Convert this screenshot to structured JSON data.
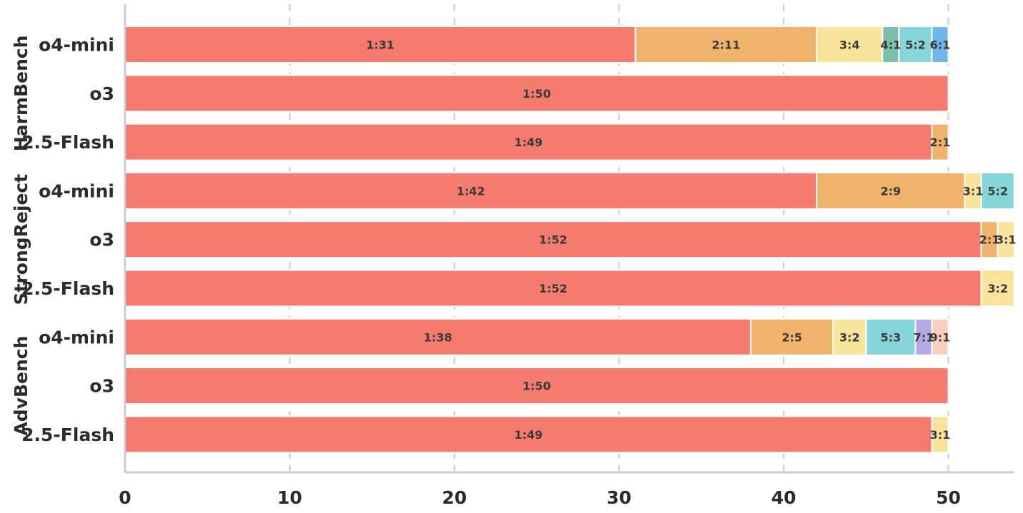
{
  "chart_data": {
    "type": "bar",
    "orientation": "horizontal",
    "stacked": true,
    "xlim": [
      0,
      54
    ],
    "x_ticks": [
      0,
      10,
      20,
      30,
      40,
      50
    ],
    "grid": "vertical-dashed",
    "colors": {
      "1": "#f47b6e",
      "2": "#efb36c",
      "3": "#f8e39a",
      "4": "#7fbfaa",
      "5": "#86d6d9",
      "6": "#6eb6ec",
      "7": "#b6a8e6",
      "9": "#f9d0c0"
    },
    "groups": [
      {
        "name": "HarmBench",
        "rows": [
          {
            "label": "o4-mini",
            "segments": [
              {
                "key": "1",
                "value": 31,
                "label": "1:31"
              },
              {
                "key": "2",
                "value": 11,
                "label": "2:11"
              },
              {
                "key": "3",
                "value": 4,
                "label": "3:4"
              },
              {
                "key": "4",
                "value": 1,
                "label": "4:1"
              },
              {
                "key": "5",
                "value": 2,
                "label": "5:2"
              },
              {
                "key": "6",
                "value": 1,
                "label": "6:1"
              }
            ]
          },
          {
            "label": "o3",
            "segments": [
              {
                "key": "1",
                "value": 50,
                "label": "1:50"
              }
            ]
          },
          {
            "label": "2.5-Flash",
            "segments": [
              {
                "key": "1",
                "value": 49,
                "label": "1:49"
              },
              {
                "key": "2",
                "value": 1,
                "label": "2:1"
              }
            ]
          }
        ]
      },
      {
        "name": "StrongReject",
        "rows": [
          {
            "label": "o4-mini",
            "segments": [
              {
                "key": "1",
                "value": 42,
                "label": "1:42"
              },
              {
                "key": "2",
                "value": 9,
                "label": "2:9"
              },
              {
                "key": "3",
                "value": 1,
                "label": "3:1"
              },
              {
                "key": "5",
                "value": 2,
                "label": "5:2"
              }
            ]
          },
          {
            "label": "o3",
            "segments": [
              {
                "key": "1",
                "value": 52,
                "label": "1:52"
              },
              {
                "key": "2",
                "value": 1,
                "label": "2:1"
              },
              {
                "key": "3",
                "value": 1,
                "label": "3:1"
              }
            ]
          },
          {
            "label": "2.5-Flash",
            "segments": [
              {
                "key": "1",
                "value": 52,
                "label": "1:52"
              },
              {
                "key": "3",
                "value": 2,
                "label": "3:2"
              }
            ]
          }
        ]
      },
      {
        "name": "AdvBench",
        "rows": [
          {
            "label": "o4-mini",
            "segments": [
              {
                "key": "1",
                "value": 38,
                "label": "1:38"
              },
              {
                "key": "2",
                "value": 5,
                "label": "2:5"
              },
              {
                "key": "3",
                "value": 2,
                "label": "3:2"
              },
              {
                "key": "5",
                "value": 3,
                "label": "5:3"
              },
              {
                "key": "7",
                "value": 1,
                "label": "7:1"
              },
              {
                "key": "9",
                "value": 1,
                "label": "9:1"
              }
            ]
          },
          {
            "label": "o3",
            "segments": [
              {
                "key": "1",
                "value": 50,
                "label": "1:50"
              }
            ]
          },
          {
            "label": "2.5-Flash",
            "segments": [
              {
                "key": "1",
                "value": 49,
                "label": "1:49"
              },
              {
                "key": "3",
                "value": 1,
                "label": "3:1"
              }
            ]
          }
        ]
      }
    ]
  }
}
